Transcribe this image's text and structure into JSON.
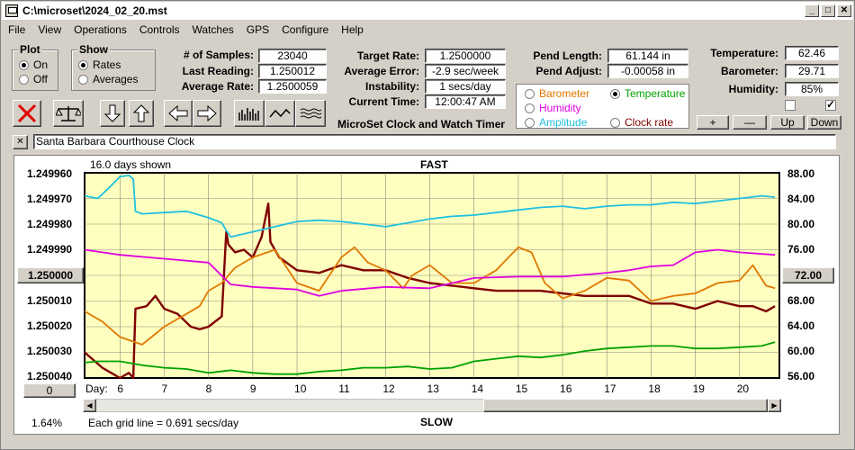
{
  "window": {
    "title": "C:\\microset\\2024_02_20.mst"
  },
  "menu": [
    "File",
    "View",
    "Operations",
    "Controls",
    "Watches",
    "GPS",
    "Configure",
    "Help"
  ],
  "plot_group": {
    "title": "Plot",
    "options": [
      {
        "label": "On",
        "selected": true
      },
      {
        "label": "Off",
        "selected": false
      }
    ]
  },
  "show_group": {
    "title": "Show",
    "options": [
      {
        "label": "Rates",
        "selected": true
      },
      {
        "label": "Averages",
        "selected": false
      }
    ]
  },
  "stats": {
    "samples_label": "# of Samples:",
    "samples": "23040",
    "last_label": "Last Reading:",
    "last": "1.250012",
    "avg_rate_label": "Average Rate:",
    "avg_rate": "1.2500059",
    "target_label": "Target Rate:",
    "target": "1.2500000",
    "avg_err_label": "Average Error:",
    "avg_err": "-2.9 sec/week",
    "instab_label": "Instability:",
    "instab": "1 secs/day",
    "time_label": "Current Time:",
    "time": "12:00:47 AM",
    "app_caption": "MicroSet Clock and Watch Timer",
    "pend_len_label": "Pend Length:",
    "pend_len": "61.144 in",
    "pend_adj_label": "Pend Adjust:",
    "pend_adj": "-0.00058 in",
    "temp_label": "Temperature:",
    "temp": "62.46",
    "baro_label": "Barometer:",
    "baro": "29.71",
    "hum_label": "Humidity:",
    "hum": "85%"
  },
  "overlay": [
    {
      "label": "Barometer",
      "color": "#e07800",
      "selected": false
    },
    {
      "label": "Temperature",
      "color": "#00a000",
      "selected": true
    },
    {
      "label": "Humidity",
      "color": "#e000e0",
      "selected": false
    },
    {
      "label": "Amplitude",
      "color": "#20c0e0",
      "selected": false
    },
    {
      "label": "Clock rate",
      "color": "#800000",
      "selected": false
    }
  ],
  "adjust_buttons": [
    "+",
    "—",
    "Up",
    "Down"
  ],
  "checkboxes": [
    false,
    true
  ],
  "clock_name": "Santa Barbara Courthouse Clock",
  "close_x": "✕",
  "chart": {
    "days_shown": "16.0 days shown",
    "top_label": "FAST",
    "bottom_label": "SLOW",
    "day_label": "Day:",
    "center_button": "1.250000",
    "right_center_button": "72.00",
    "zero_button": "0",
    "percent": "1.64%",
    "grid_caption": "Each grid line = 0.691 secs/day",
    "left_ticks": [
      "1.249960",
      "1.249970",
      "1.249980",
      "1.249990",
      "1.250010",
      "1.250020",
      "1.250030",
      "1.250040"
    ],
    "right_ticks": [
      "88.00",
      "84.00",
      "80.00",
      "76.00",
      "68.00",
      "64.00",
      "60.00",
      "56.00"
    ]
  },
  "chart_data": {
    "type": "line",
    "x_label": "Day:",
    "x_ticks": [
      "6",
      "7",
      "8",
      "9",
      "10",
      "11",
      "12",
      "13",
      "14",
      "15",
      "16",
      "17",
      "18",
      "19",
      "20"
    ],
    "xlim": [
      5.2,
      20.9
    ],
    "y_left_lim": [
      1.24996,
      1.25004
    ],
    "y_right_lim": [
      56,
      88
    ],
    "y_left_inverted": true,
    "series": [
      {
        "name": "Clock rate",
        "axis": "left",
        "color": "#800000",
        "x": [
          5.2,
          5.4,
          5.6,
          5.8,
          6.0,
          6.2,
          6.3,
          6.35,
          6.6,
          6.8,
          7.0,
          7.3,
          7.6,
          7.8,
          8.0,
          8.3,
          8.4,
          8.45,
          8.6,
          8.8,
          9.0,
          9.2,
          9.35,
          9.4,
          9.6,
          10.0,
          10.5,
          11.0,
          11.5,
          12.0,
          12.5,
          13.0,
          13.5,
          14.0,
          14.5,
          15.0,
          15.5,
          16.0,
          16.5,
          17.0,
          17.5,
          18.0,
          18.5,
          19.0,
          19.5,
          20.0,
          20.3,
          20.6,
          20.8
        ],
        "y": [
          1.25003,
          1.250033,
          1.250036,
          1.250038,
          1.25004,
          1.250038,
          1.25004,
          1.250013,
          1.250012,
          1.250008,
          1.250013,
          1.250015,
          1.25002,
          1.250021,
          1.25002,
          1.250016,
          1.249983,
          1.249988,
          1.249991,
          1.24999,
          1.249993,
          1.249985,
          1.249972,
          1.249987,
          1.249993,
          1.249998,
          1.249999,
          1.249996,
          1.249998,
          1.249998,
          1.250001,
          1.250003,
          1.250004,
          1.250005,
          1.250006,
          1.250006,
          1.250006,
          1.250007,
          1.250008,
          1.250008,
          1.250008,
          1.250011,
          1.250011,
          1.250013,
          1.25001,
          1.250012,
          1.250012,
          1.250014,
          1.250012
        ]
      },
      {
        "name": "Barometer",
        "axis": "left",
        "color": "#e07800",
        "x": [
          5.2,
          5.6,
          6.0,
          6.5,
          7.0,
          7.5,
          7.8,
          8.0,
          8.3,
          8.6,
          9.0,
          9.5,
          10.0,
          10.5,
          11.0,
          11.3,
          11.6,
          12.0,
          12.4,
          12.6,
          13.0,
          13.5,
          14.0,
          14.5,
          15.0,
          15.3,
          15.6,
          16.0,
          16.5,
          17.0,
          17.5,
          18.0,
          18.5,
          19.0,
          19.5,
          20.0,
          20.3,
          20.6,
          20.8
        ],
        "y": [
          1.250014,
          1.250018,
          1.250024,
          1.250027,
          1.25002,
          1.250015,
          1.250012,
          1.250006,
          1.250003,
          1.249997,
          1.249993,
          1.24999,
          1.250003,
          1.250006,
          1.249993,
          1.249989,
          1.249995,
          1.249998,
          1.250005,
          1.25,
          1.249996,
          1.250003,
          1.250003,
          1.249998,
          1.249989,
          1.249991,
          1.250003,
          1.250009,
          1.250006,
          1.250001,
          1.250002,
          1.25001,
          1.250008,
          1.250007,
          1.250003,
          1.250002,
          1.249996,
          1.250004,
          1.250005
        ]
      },
      {
        "name": "Humidity",
        "axis": "right",
        "color": "#e000e0",
        "x": [
          5.2,
          6.0,
          7.0,
          8.0,
          8.5,
          9.0,
          10.0,
          10.5,
          11.0,
          12.0,
          13.0,
          14.0,
          15.0,
          16.0,
          17.0,
          17.5,
          18.0,
          18.5,
          19.0,
          19.5,
          20.0,
          20.8
        ],
        "y": [
          76.0,
          75.2,
          74.6,
          74.0,
          70.6,
          70.2,
          69.8,
          68.8,
          69.6,
          70.2,
          70.0,
          71.6,
          71.8,
          71.8,
          72.4,
          72.8,
          73.4,
          73.6,
          75.6,
          76.0,
          75.6,
          75.2
        ]
      },
      {
        "name": "Amplitude",
        "axis": "right",
        "color": "#20c0e0",
        "x": [
          5.2,
          5.5,
          5.8,
          6.0,
          6.2,
          6.3,
          6.35,
          6.5,
          7.0,
          7.5,
          8.0,
          8.3,
          8.4,
          8.5,
          9.0,
          9.5,
          10.0,
          10.5,
          11.0,
          11.5,
          12.0,
          12.5,
          13.0,
          13.5,
          14.0,
          14.5,
          15.0,
          15.5,
          16.0,
          16.5,
          17.0,
          17.5,
          18.0,
          18.5,
          19.0,
          19.5,
          20.0,
          20.5,
          20.8
        ],
        "y": [
          84.4,
          84.0,
          86.0,
          87.4,
          87.6,
          87.0,
          82.0,
          81.6,
          81.8,
          82.0,
          81.0,
          80.2,
          79.0,
          78.0,
          78.8,
          79.6,
          80.4,
          80.6,
          80.4,
          80.0,
          79.6,
          80.2,
          80.8,
          81.2,
          81.4,
          81.8,
          82.2,
          82.6,
          82.8,
          82.4,
          82.8,
          83.0,
          83.0,
          83.4,
          83.2,
          83.6,
          84.0,
          84.4,
          84.2
        ]
      },
      {
        "name": "Temperature",
        "axis": "right",
        "color": "#00a000",
        "x": [
          5.2,
          5.5,
          6.0,
          6.5,
          7.0,
          7.5,
          8.0,
          8.5,
          9.0,
          9.5,
          10.0,
          10.5,
          11.0,
          11.5,
          12.0,
          12.5,
          13.0,
          13.5,
          14.0,
          14.5,
          15.0,
          15.5,
          16.0,
          16.5,
          17.0,
          17.5,
          18.0,
          18.5,
          19.0,
          19.5,
          20.0,
          20.5,
          20.8
        ],
        "y": [
          58.4,
          58.6,
          58.6,
          58.0,
          57.6,
          57.4,
          56.8,
          57.2,
          56.8,
          56.6,
          56.6,
          57.0,
          57.2,
          57.6,
          57.6,
          57.8,
          57.4,
          57.6,
          58.6,
          59.0,
          59.4,
          59.2,
          59.6,
          60.2,
          60.6,
          60.8,
          61.0,
          61.0,
          60.6,
          60.6,
          60.8,
          61.0,
          61.6
        ]
      }
    ]
  }
}
